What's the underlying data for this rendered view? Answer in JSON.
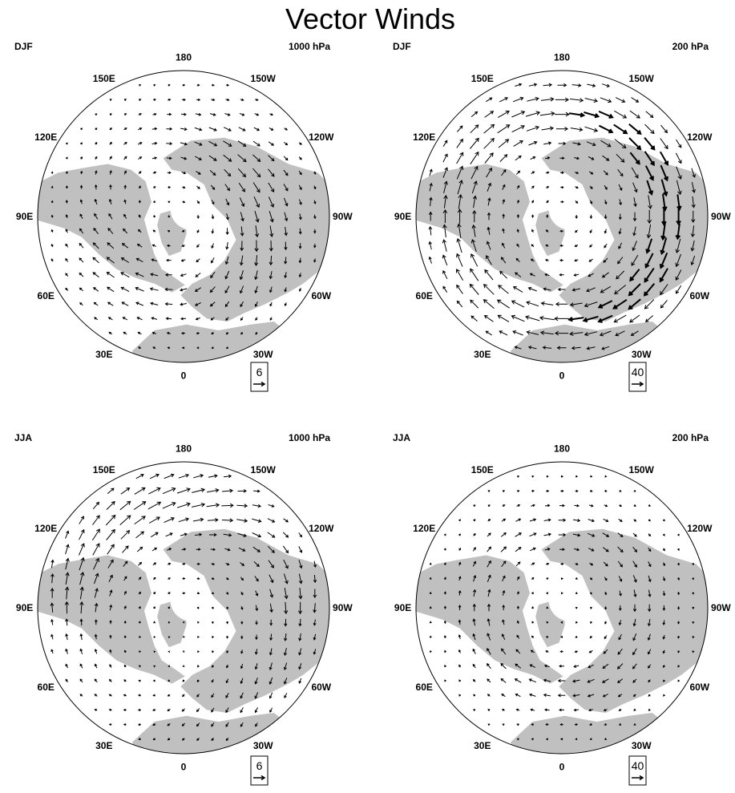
{
  "title": "Vector Winds",
  "colors": {
    "land": "#c0c0c0",
    "ocean": "#ffffff",
    "vector": "#000000",
    "outline": "#000000"
  },
  "panels": [
    {
      "season": "DJF",
      "level": "1000 hPa",
      "ref_vector": "6",
      "pattern": "djf_surface"
    },
    {
      "season": "DJF",
      "level": "200 hPa",
      "ref_vector": "40",
      "pattern": "djf_jet"
    },
    {
      "season": "JJA",
      "level": "1000 hPa",
      "ref_vector": "6",
      "pattern": "jja_surface"
    },
    {
      "season": "JJA",
      "level": "200 hPa",
      "ref_vector": "40",
      "pattern": "jja_jet"
    }
  ],
  "longitude_labels": [
    "180",
    "150E",
    "120E",
    "90E",
    "60E",
    "30E",
    "0",
    "30W",
    "60W",
    "90W",
    "120W",
    "150W"
  ]
}
